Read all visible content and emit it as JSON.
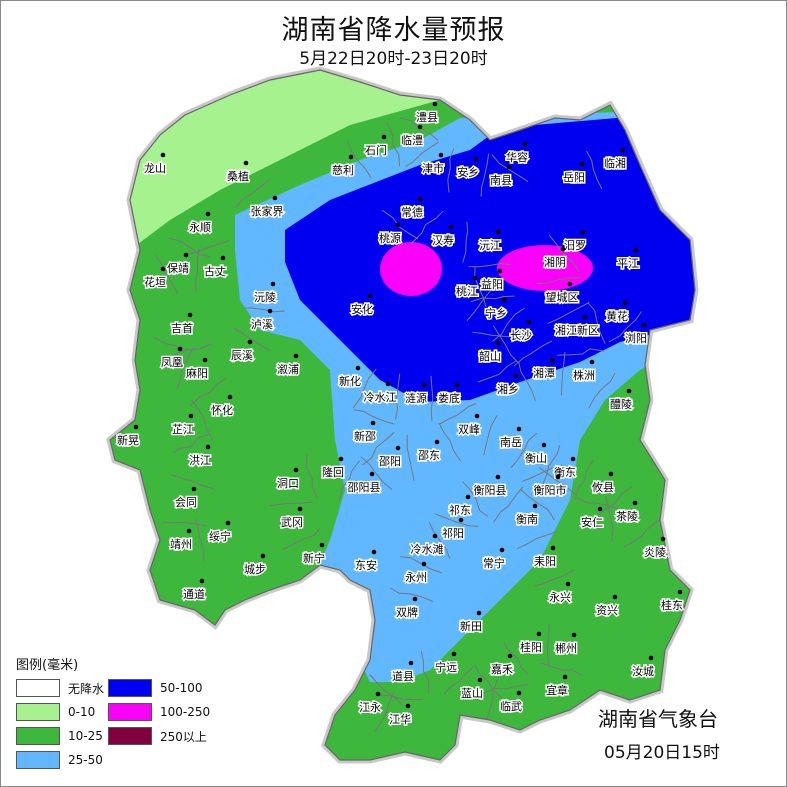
{
  "header": {
    "title": "湖南省降水量预报",
    "subtitle": "5月22日20时-23日20时"
  },
  "legend": {
    "title": "图例(毫米)",
    "items": [
      {
        "label": "无降水",
        "color": "#ffffff"
      },
      {
        "label": "50-100",
        "color": "#0000f0"
      },
      {
        "label": "0-10",
        "color": "#a6f28f"
      },
      {
        "label": "100-250",
        "color": "#fa00fa"
      },
      {
        "label": "10-25",
        "color": "#3db83d"
      },
      {
        "label": "250以上",
        "color": "#800040"
      },
      {
        "label": "25-50",
        "color": "#61b8ff"
      }
    ]
  },
  "footer": {
    "organization": "湖南省气象台",
    "issued": "05月20日15时"
  },
  "map": {
    "cities": [
      "龙山",
      "桑植",
      "澧县",
      "临澧",
      "石门",
      "慈利",
      "津市",
      "安乡",
      "华容",
      "南县",
      "岳阳",
      "临湘",
      "张家界",
      "常德",
      "永顺",
      "桃源",
      "汉寿",
      "沅江",
      "汨罗",
      "湘阴",
      "平江",
      "保靖",
      "古丈",
      "花垣",
      "益阳",
      "桃江",
      "沅陵",
      "望城区",
      "黄花",
      "宁乡",
      "安化",
      "泸溪",
      "吉首",
      "长沙",
      "湘江新区",
      "浏阳",
      "凤凰",
      "辰溪",
      "麻阳",
      "溆浦",
      "韶山",
      "湘潭",
      "株洲",
      "新化",
      "冷水江",
      "涟源",
      "娄底",
      "湘乡",
      "醴陵",
      "怀化",
      "芷江",
      "新晃",
      "双峰",
      "新邵",
      "南岳",
      "邵东",
      "衡山",
      "邵阳",
      "衡东",
      "洪江",
      "隆回",
      "衡阳县",
      "衡阳市",
      "攸县",
      "洞口",
      "邵阳县",
      "会同",
      "祁东",
      "衡南",
      "安仁",
      "茶陵",
      "武冈",
      "绥宁",
      "祁阳",
      "靖州",
      "冷水滩",
      "新宁",
      "东安",
      "常宁",
      "耒阳",
      "炎陵",
      "城步",
      "永州",
      "永兴",
      "通道",
      "桂东",
      "资兴",
      "双牌",
      "新田",
      "桂阳",
      "郴州",
      "嘉禾",
      "宁远",
      "道县",
      "汝城",
      "蓝山",
      "宜章",
      "临武",
      "江永",
      "江华"
    ]
  }
}
